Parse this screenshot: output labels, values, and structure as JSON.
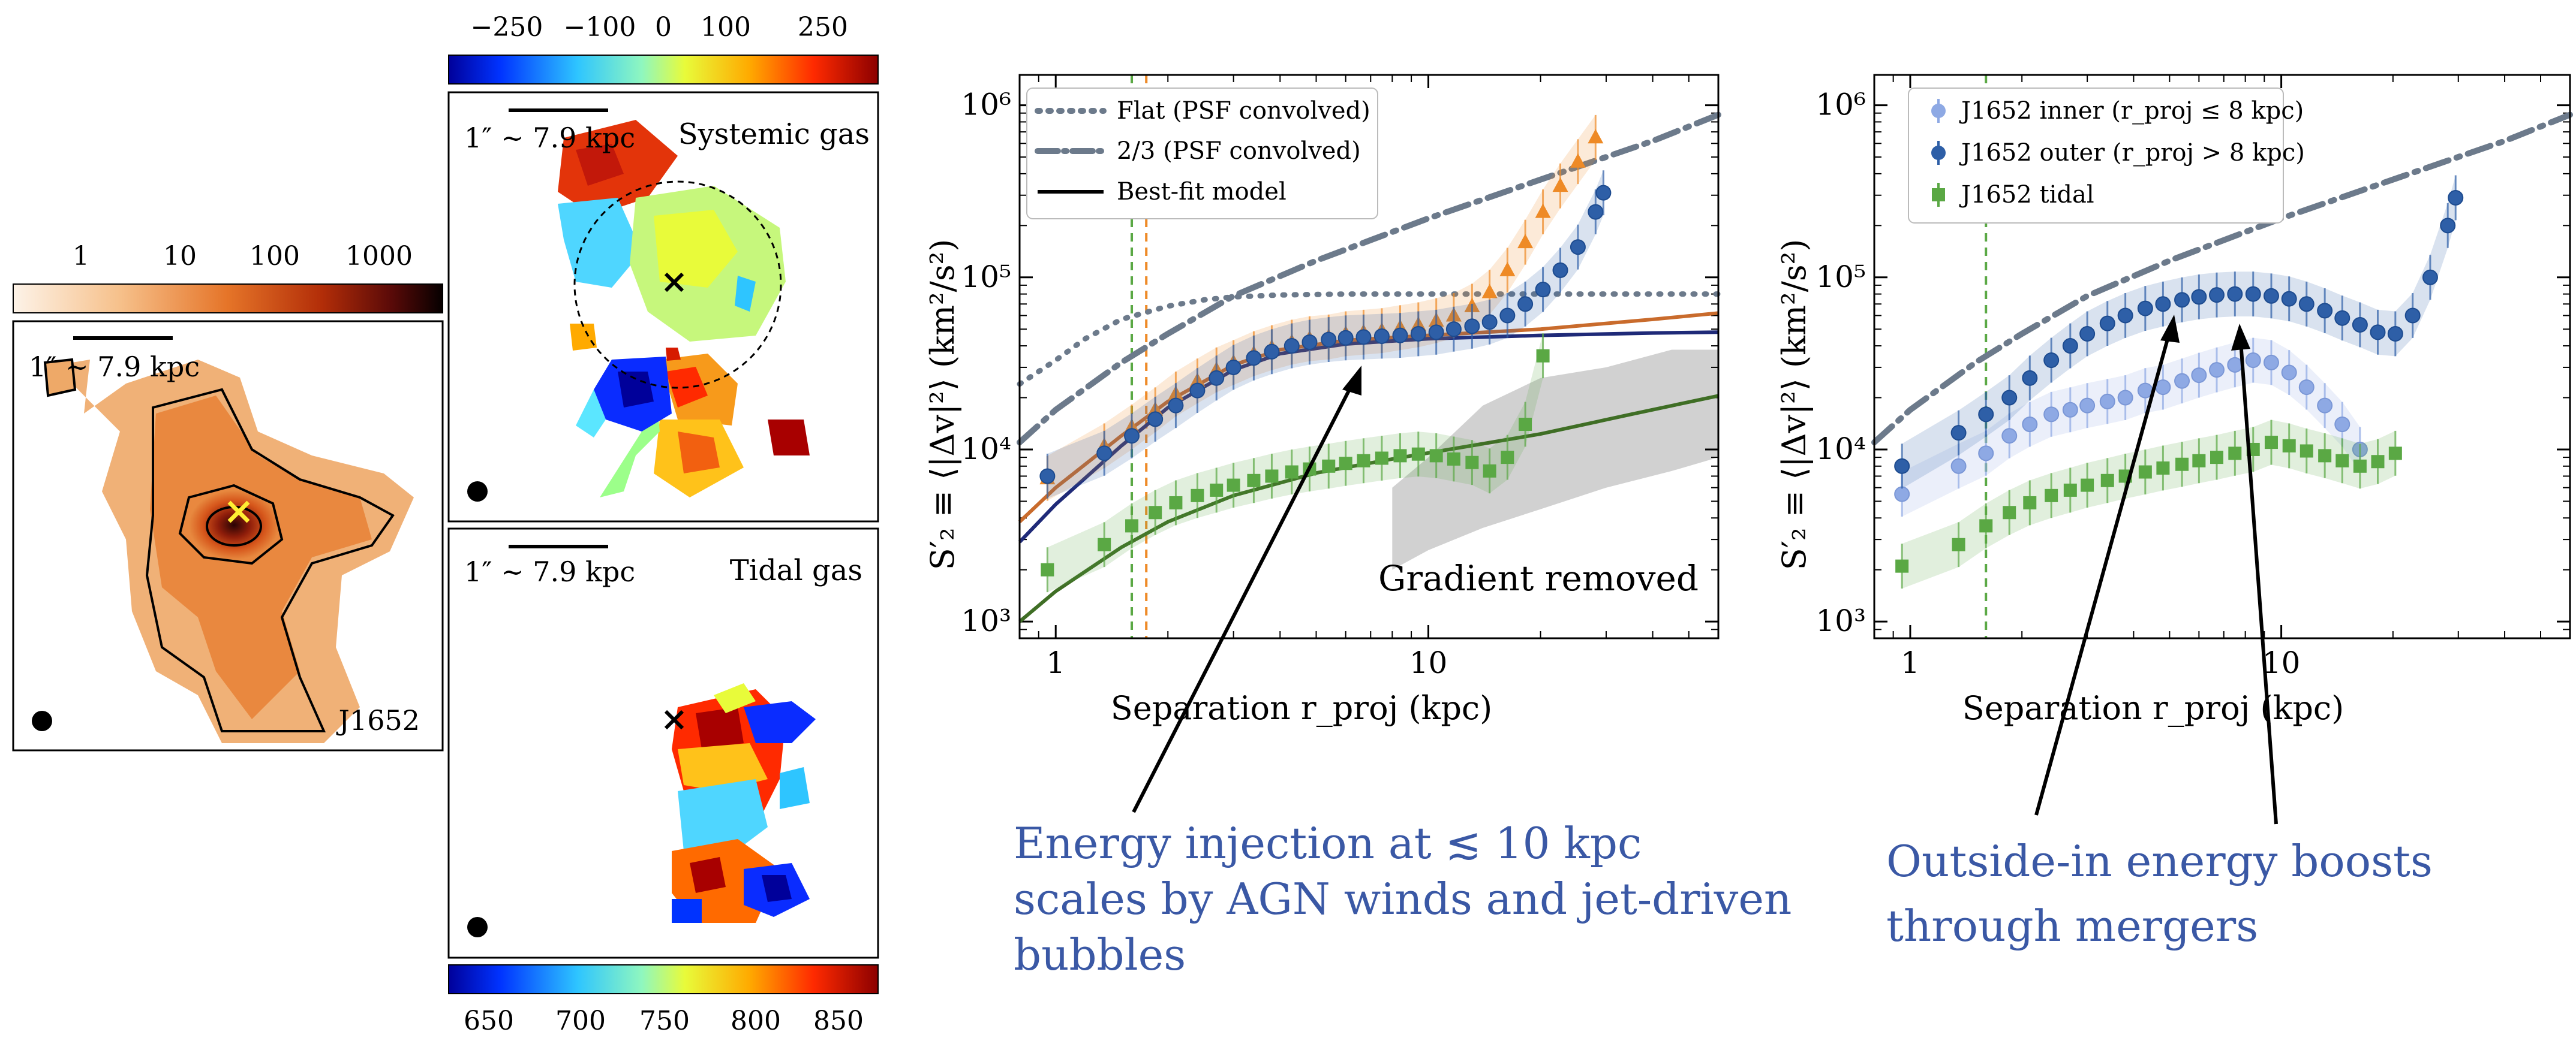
{
  "colors": {
    "orange": "#ee8a26",
    "blue_dark": "#2e5fa7",
    "blue_light": "#8ea9e4",
    "green": "#5aa844",
    "gray_model": "#6c7a8b",
    "annotation": "#3a58a5",
    "fit_orange": "#c96b2c",
    "fit_blue": "#1f2a78",
    "fit_green": "#3f6e25"
  },
  "panels": {
    "flux": {
      "colorbar_ticks": [
        "1",
        "10",
        "100",
        "1000"
      ],
      "scale_label": "1″ ∼ 7.9 kpc",
      "object_label": "J1652"
    },
    "systemic": {
      "colorbar_ticks": [
        "−250",
        "−100",
        "0",
        "100",
        "250"
      ],
      "scale_label": "1″ ∼ 7.9 kpc",
      "title": "Systemic gas"
    },
    "tidal": {
      "colorbar_ticks": [
        "650",
        "700",
        "750",
        "800",
        "850"
      ],
      "scale_label": "1″ ∼ 7.9 kpc",
      "title": "Tidal gas"
    }
  },
  "chart_data": [
    {
      "type": "line",
      "xlabel": "Separation r_proj (kpc)",
      "ylabel": "S′₂ ≡ ⟨|Δv|²⟩ (km²/s²)",
      "xscale": "log",
      "yscale": "log",
      "xlim": [
        0.8,
        60
      ],
      "ylim": [
        800,
        1500000
      ],
      "x_ticks": [
        "1",
        "10"
      ],
      "y_ticks": [
        "10³",
        "10⁴",
        "10⁵",
        "10⁶"
      ],
      "inner_text": "Gradient removed",
      "legend_position": "top-left",
      "legend": [
        "Flat (PSF convolved)",
        "2/3 (PSF convolved)",
        "Best-fit model"
      ],
      "vlines": [
        1.6,
        1.75
      ],
      "series": [
        {
          "name": "Flat (PSF convolved)",
          "style": "dotted",
          "x": [
            0.8,
            1.0,
            1.2,
            1.5,
            2,
            2.5,
            3,
            4,
            6,
            10,
            20,
            40,
            60
          ],
          "y": [
            24000,
            33000,
            44000,
            57000,
            68000,
            74000,
            77000,
            79000,
            80000,
            80000,
            80000,
            80000,
            80000
          ]
        },
        {
          "name": "2/3 (PSF convolved)",
          "style": "dashdot",
          "x": [
            0.8,
            1.0,
            1.5,
            2,
            3,
            5,
            10,
            20,
            40,
            60
          ],
          "y": [
            11000,
            17000,
            32000,
            47000,
            78000,
            125000,
            220000,
            370000,
            620000,
            880000
          ]
        },
        {
          "style": "fit_orange",
          "x": [
            0.8,
            1,
            1.5,
            2,
            3,
            4,
            6,
            10,
            20,
            40,
            60
          ],
          "y": [
            3800,
            6000,
            12000,
            19000,
            31000,
            38000,
            43000,
            46000,
            50000,
            57000,
            62000
          ]
        },
        {
          "style": "fit_blue",
          "x": [
            0.8,
            1,
            1.5,
            2,
            3,
            4,
            6,
            10,
            20,
            40,
            60
          ],
          "y": [
            2900,
            4800,
            10500,
            17500,
            29000,
            36000,
            41000,
            44000,
            46000,
            47500,
            48000
          ]
        },
        {
          "style": "fit_green",
          "x": [
            0.8,
            1,
            1.5,
            2,
            3,
            5,
            8,
            12,
            20,
            35,
            60
          ],
          "y": [
            1000,
            1500,
            2700,
            3800,
            5400,
            7300,
            8800,
            10200,
            12300,
            16000,
            20500
          ]
        },
        {
          "style": "points_orange",
          "x": [
            0.95,
            1.35,
            1.6,
            1.85,
            2.1,
            2.4,
            2.7,
            3.0,
            3.4,
            3.8,
            4.3,
            4.8,
            5.4,
            6.0,
            6.7,
            7.5,
            8.4,
            9.4,
            10.5,
            11.7,
            13.1,
            14.6,
            16.3,
            18.2,
            20.3,
            22.6,
            25.2,
            28.1
          ],
          "y": [
            6800,
            10500,
            13500,
            17000,
            21000,
            25000,
            29000,
            32000,
            36000,
            39000,
            42000,
            44000,
            45000,
            47000,
            48000,
            49000,
            51000,
            53000,
            56000,
            60000,
            68000,
            82000,
            110000,
            160000,
            240000,
            340000,
            470000,
            650000
          ]
        },
        {
          "style": "points_blue",
          "x": [
            0.95,
            1.35,
            1.6,
            1.85,
            2.1,
            2.4,
            2.7,
            3.0,
            3.4,
            3.8,
            4.3,
            4.8,
            5.4,
            6.0,
            6.7,
            7.5,
            8.4,
            9.4,
            10.5,
            11.7,
            13.1,
            14.6,
            16.3,
            18.2,
            20.3,
            22.6,
            25.2,
            28.1,
            29.5
          ],
          "y": [
            7000,
            9500,
            12000,
            15000,
            18000,
            22000,
            26000,
            30000,
            34000,
            37000,
            40000,
            42000,
            43500,
            44500,
            45000,
            45500,
            46000,
            47000,
            48000,
            50000,
            52000,
            55000,
            60000,
            70000,
            85000,
            110000,
            150000,
            240000,
            310000
          ]
        },
        {
          "style": "points_green",
          "x": [
            0.95,
            1.35,
            1.6,
            1.85,
            2.1,
            2.4,
            2.7,
            3.0,
            3.4,
            3.8,
            4.3,
            4.8,
            5.4,
            6.0,
            6.7,
            7.5,
            8.4,
            9.4,
            10.5,
            11.7,
            13.1,
            14.6,
            16.3,
            18.2,
            20.3
          ],
          "y": [
            2000,
            2800,
            3600,
            4300,
            4900,
            5400,
            5800,
            6200,
            6600,
            7000,
            7400,
            7700,
            8000,
            8300,
            8600,
            8900,
            9200,
            9400,
            9200,
            8800,
            8400,
            7500,
            9000,
            14000,
            35000
          ]
        }
      ]
    },
    {
      "type": "line",
      "xlabel": "Separation r_proj (kpc)",
      "ylabel": "S′₂ ≡ ⟨|Δv|²⟩ (km²/s²)",
      "xscale": "log",
      "yscale": "log",
      "xlim": [
        0.8,
        60
      ],
      "ylim": [
        800,
        1500000
      ],
      "x_ticks": [
        "1",
        "10"
      ],
      "y_ticks": [
        "10³",
        "10⁴",
        "10⁵",
        "10⁶"
      ],
      "legend_position": "top-left",
      "legend": [
        "J1652 inner (r_proj ≤ 8 kpc)",
        "J1652 outer (r_proj > 8 kpc)",
        "J1652 tidal"
      ],
      "vlines": [
        1.6
      ],
      "series": [
        {
          "style": "dashdot",
          "x": [
            0.8,
            1.0,
            1.5,
            2,
            3,
            5,
            10,
            20,
            40,
            60
          ],
          "y": [
            11000,
            17000,
            32000,
            47000,
            78000,
            125000,
            220000,
            370000,
            620000,
            880000
          ]
        },
        {
          "name": "J1652 inner (r_proj ≤ 8 kpc)",
          "style": "points_light",
          "x": [
            0.95,
            1.35,
            1.6,
            1.85,
            2.1,
            2.4,
            2.7,
            3.0,
            3.4,
            3.8,
            4.3,
            4.8,
            5.4,
            6.0,
            6.7,
            7.5,
            8.4,
            9.4,
            10.5,
            11.7,
            13.1,
            14.6,
            16.3
          ],
          "y": [
            5500,
            8000,
            9500,
            12000,
            14000,
            16000,
            17000,
            18000,
            19000,
            20000,
            22000,
            23000,
            25000,
            27000,
            29000,
            31000,
            33000,
            32000,
            28000,
            23000,
            18000,
            14000,
            10000
          ]
        },
        {
          "name": "J1652 outer (r_proj > 8 kpc)",
          "style": "points_dark",
          "x": [
            0.95,
            1.35,
            1.6,
            1.85,
            2.1,
            2.4,
            2.7,
            3.0,
            3.4,
            3.8,
            4.3,
            4.8,
            5.4,
            6.0,
            6.7,
            7.5,
            8.4,
            9.4,
            10.5,
            11.7,
            13.1,
            14.6,
            16.3,
            18.2,
            20.3,
            22.6,
            25.2,
            28.1,
            29.5
          ],
          "y": [
            8000,
            12500,
            16000,
            20000,
            26000,
            33000,
            40000,
            47000,
            54000,
            60000,
            66000,
            70000,
            74000,
            77000,
            79000,
            80000,
            80000,
            78000,
            75000,
            70000,
            64000,
            58000,
            53000,
            48000,
            47000,
            60000,
            100000,
            200000,
            290000
          ]
        },
        {
          "name": "J1652 tidal",
          "style": "points_green",
          "x": [
            0.95,
            1.35,
            1.6,
            1.85,
            2.1,
            2.4,
            2.7,
            3.0,
            3.4,
            3.8,
            4.3,
            4.8,
            5.4,
            6.0,
            6.7,
            7.5,
            8.4,
            9.4,
            10.5,
            11.7,
            13.1,
            14.6,
            16.3,
            18.2,
            20.3
          ],
          "y": [
            2100,
            2800,
            3600,
            4300,
            4900,
            5400,
            5800,
            6200,
            6600,
            7000,
            7400,
            7800,
            8200,
            8600,
            9000,
            9500,
            10000,
            11000,
            10500,
            9800,
            9200,
            8600,
            8000,
            8500,
            9500
          ]
        }
      ]
    }
  ],
  "annotations": {
    "left": [
      "Energy injection at  ≲ 10 kpc",
      "scales by AGN winds and jet-driven",
      "bubbles"
    ],
    "right": [
      "Outside-in energy boosts",
      "through mergers"
    ]
  }
}
